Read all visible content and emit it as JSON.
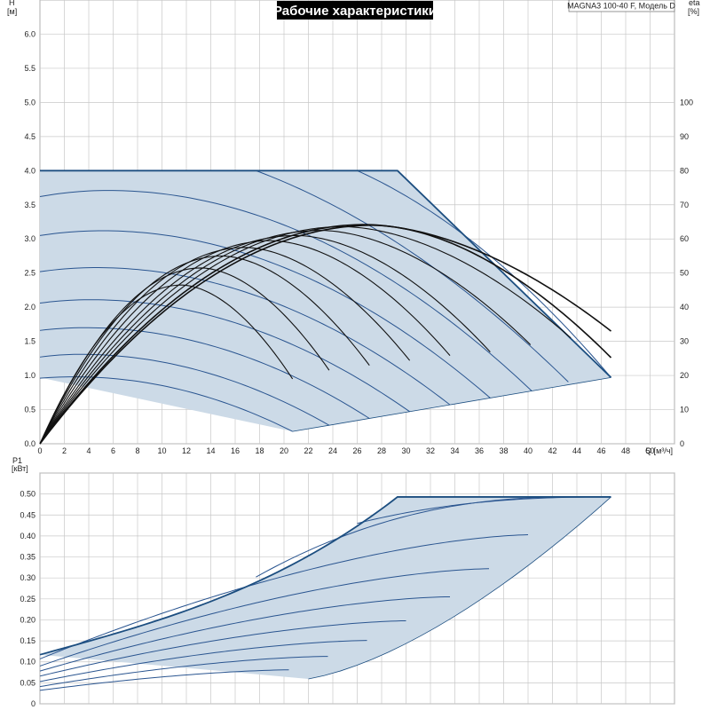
{
  "title": "Рабочие характеристики",
  "model": "MAGNA3 100-40 F, Модель D",
  "colors": {
    "envelope_fill": "#ccdae7",
    "envelope_stroke": "#1c4e80",
    "curve_blue": "#2a5590",
    "eff_curve": "#111111",
    "grid": "#c8c8c8",
    "title_bg": "#000000"
  },
  "chart_data": [
    {
      "type": "line",
      "name": "head",
      "xlabel": "Q [м³/ч]",
      "ylabel": "H [м]",
      "y2label": "eta [%]",
      "xlim": [
        0,
        52
      ],
      "ylim": [
        0,
        6.5
      ],
      "y2lim": [
        0,
        130
      ],
      "xticks": [
        "0",
        "2",
        "4",
        "6",
        "8",
        "10",
        "12",
        "14",
        "16",
        "18",
        "20",
        "22",
        "24",
        "26",
        "28",
        "30",
        "32",
        "34",
        "36",
        "38",
        "40",
        "42",
        "44",
        "46",
        "48",
        "50"
      ],
      "yticks": [
        "0.0",
        "0.5",
        "1.0",
        "1.5",
        "2.0",
        "2.5",
        "3.0",
        "3.5",
        "4.0",
        "4.5",
        "5.0",
        "5.5",
        "6.0"
      ],
      "y2ticks": [
        "0",
        "10",
        "20",
        "30",
        "40",
        "50",
        "60",
        "70",
        "80",
        "90",
        "100"
      ],
      "envelope": [
        [
          0,
          4.0
        ],
        [
          29.3,
          4.0
        ],
        [
          46.8,
          0.97
        ],
        [
          20.7,
          0.18
        ],
        [
          0,
          0.97
        ]
      ],
      "constant_pressure_curves": [
        {
          "h0": 3.62,
          "qmax": 40.3,
          "hmax": 3.71,
          "qpk": 5.6
        },
        {
          "h0": 3.05,
          "qmax": 36.9,
          "hmax": 3.12,
          "qpk": 5.1
        },
        {
          "h0": 2.52,
          "qmax": 33.6,
          "hmax": 2.58,
          "qpk": 4.6
        },
        {
          "h0": 2.06,
          "qmax": 30.3,
          "hmax": 2.11,
          "qpk": 4.1
        },
        {
          "h0": 1.66,
          "qmax": 27.0,
          "hmax": 1.7,
          "qpk": 3.7
        },
        {
          "h0": 1.27,
          "qmax": 23.7,
          "hmax": 1.31,
          "qpk": 3.3
        },
        {
          "h0": 0.96,
          "qmax": 20.7,
          "hmax": 0.98,
          "qpk": 2.9
        }
      ],
      "upper_curves": [
        {
          "q0": 17.7,
          "h0": 4.0
        },
        {
          "q0": 26.0,
          "h0": 4.0
        }
      ],
      "efficiency_curves": [
        {
          "qend": 20.7,
          "pk": 11.6,
          "etapk": 46.5,
          "etaend": 19
        },
        {
          "qend": 23.9,
          "pk": 13.2,
          "etapk": 51.5,
          "etaend": 20.5
        },
        {
          "qend": 27.2,
          "pk": 14.9,
          "etapk": 55.0,
          "etaend": 22
        },
        {
          "qend": 30.5,
          "pk": 16.8,
          "etapk": 57.5,
          "etaend": 23.5
        },
        {
          "qend": 33.8,
          "pk": 18.9,
          "etapk": 59.5,
          "etaend": 25
        },
        {
          "qend": 37.0,
          "pk": 21.0,
          "etapk": 61.0,
          "etaend": 26.5
        },
        {
          "qend": 40.2,
          "pk": 23.0,
          "etapk": 62.5,
          "etaend": 29
        },
        {
          "qend": 43.5,
          "pk": 24.8,
          "etapk": 63.6,
          "etaend": 31
        },
        {
          "qend": 46.8,
          "pk": 26.6,
          "etapk": 64.2,
          "etaend": 33
        },
        {
          "qend": 47.0,
          "pk": 27.3,
          "etapk": 64.0,
          "etaend": 24.5
        }
      ]
    },
    {
      "type": "line",
      "name": "power",
      "xlabel": "Q [м³/ч]",
      "ylabel": "P1 [кВт]",
      "xlim": [
        0,
        52
      ],
      "ylim": [
        0,
        0.55
      ],
      "yticks": [
        "0",
        "0.05",
        "0.10",
        "0.15",
        "0.20",
        "0.25",
        "0.30",
        "0.35",
        "0.40",
        "0.45",
        "0.50"
      ],
      "envelope": [
        [
          0,
          0.117
        ],
        [
          29.3,
          0.493
        ],
        [
          46.8,
          0.493
        ],
        [
          20.7,
          0.055
        ],
        [
          0,
          0.027
        ]
      ],
      "power_curves": [
        {
          "p0": 0.107,
          "qend": 40.3,
          "pend": 0.403
        },
        {
          "p0": 0.09,
          "qend": 36.9,
          "pend": 0.322
        },
        {
          "p0": 0.078,
          "qend": 33.6,
          "pend": 0.255
        },
        {
          "p0": 0.066,
          "qend": 30.3,
          "pend": 0.198
        },
        {
          "p0": 0.053,
          "qend": 27.0,
          "pend": 0.151
        },
        {
          "p0": 0.041,
          "qend": 23.7,
          "pend": 0.113
        },
        {
          "p0": 0.032,
          "qend": 20.7,
          "pend": 0.081
        }
      ]
    }
  ]
}
